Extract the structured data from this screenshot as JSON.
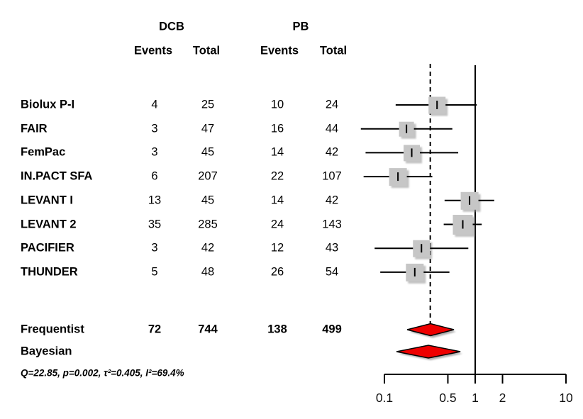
{
  "table": {
    "group_headers": {
      "dcb": "DCB",
      "pb": "PB"
    },
    "col_headers": {
      "events": "Events",
      "total": "Total"
    }
  },
  "colors": {
    "marker_gray": "#c6c6c6",
    "diamond_red": "#ee0000",
    "line_black": "#000000",
    "shadow_gray": "#9a9a9a"
  },
  "chart_data": {
    "type": "forest",
    "effect_measure": "risk ratio (DCB vs PB)",
    "x_axis": {
      "scale": "log10",
      "range": [
        0.1,
        10
      ],
      "ticks": [
        0.1,
        0.5,
        1,
        2,
        10
      ],
      "tick_labels": [
        "0.1",
        "0.5",
        "1",
        "2",
        "10"
      ],
      "reference_line": 1,
      "pooled_dashed_line": 0.32
    },
    "studies": [
      {
        "label": "Biolux P-I",
        "dcb_events": "4",
        "dcb_total": "25",
        "pb_events": "10",
        "pb_total": "24",
        "estimate": 0.38,
        "ci_low": 0.133,
        "ci_high": 1.04,
        "marker_size": 24
      },
      {
        "label": "FAIR",
        "dcb_events": "3",
        "dcb_total": "47",
        "pb_events": "16",
        "pb_total": "44",
        "estimate": 0.175,
        "ci_low": 0.055,
        "ci_high": 0.56,
        "marker_size": 21
      },
      {
        "label": "FemPac",
        "dcb_events": "3",
        "dcb_total": "45",
        "pb_events": "14",
        "pb_total": "42",
        "estimate": 0.2,
        "ci_low": 0.062,
        "ci_high": 0.65,
        "marker_size": 23
      },
      {
        "label": "IN.PACT SFA",
        "dcb_events": "6",
        "dcb_total": "207",
        "pb_events": "22",
        "pb_total": "107",
        "estimate": 0.141,
        "ci_low": 0.059,
        "ci_high": 0.337,
        "marker_size": 25
      },
      {
        "label": "LEVANT I",
        "dcb_events": "13",
        "dcb_total": "45",
        "pb_events": "14",
        "pb_total": "42",
        "estimate": 0.867,
        "ci_low": 0.46,
        "ci_high": 1.62,
        "marker_size": 25
      },
      {
        "label": "LEVANT 2",
        "dcb_events": "35",
        "dcb_total": "285",
        "pb_events": "24",
        "pb_total": "143",
        "estimate": 0.73,
        "ci_low": 0.45,
        "ci_high": 1.18,
        "marker_size": 28
      },
      {
        "label": "PACIFIER",
        "dcb_events": "3",
        "dcb_total": "42",
        "pb_events": "12",
        "pb_total": "43",
        "estimate": 0.256,
        "ci_low": 0.078,
        "ci_high": 0.84,
        "marker_size": 24
      },
      {
        "label": "THUNDER",
        "dcb_events": "5",
        "dcb_total": "48",
        "pb_events": "26",
        "pb_total": "54",
        "estimate": 0.216,
        "ci_low": 0.09,
        "ci_high": 0.52,
        "marker_size": 25
      }
    ],
    "summaries": [
      {
        "label": "Frequentist",
        "dcb_events": "72",
        "dcb_total": "744",
        "pb_events": "138",
        "pb_total": "499",
        "estimate": 0.322,
        "ci_low": 0.178,
        "ci_high": 0.583
      },
      {
        "label": "Bayesian",
        "dcb_events": "",
        "dcb_total": "",
        "pb_events": "",
        "pb_total": "",
        "estimate": 0.31,
        "ci_low": 0.136,
        "ci_high": 0.686
      }
    ],
    "heterogeneity": "Q=22.85, p=0.002, τ²=0.405, I²=69.4%"
  }
}
